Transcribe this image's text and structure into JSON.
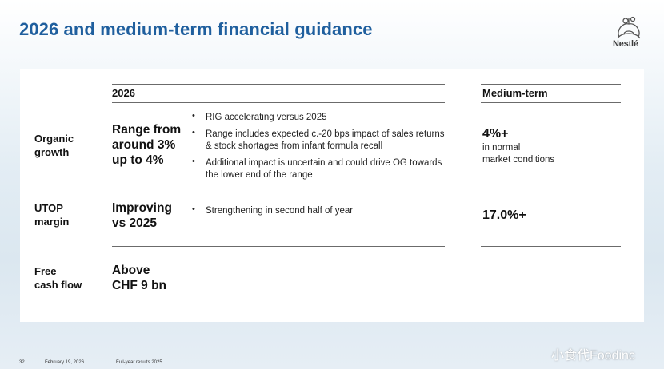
{
  "title": "2026 and medium-term financial guidance",
  "logo": {
    "text": "Nestlé",
    "icon": "nest-icon"
  },
  "table": {
    "header_2026": "2026",
    "header_medium": "Medium-term",
    "rows": [
      {
        "label_line1": "Organic",
        "label_line2": "growth",
        "value_lines": [
          "Range from",
          "around 3%",
          "up to 4%"
        ],
        "bullets": [
          "RIG accelerating versus 2025",
          "Range includes expected c.-20 bps impact of sales returns & stock shortages from infant formula recall",
          "Additional impact is uncertain and could drive OG towards the lower end of the range"
        ],
        "medium_value": "4%+",
        "medium_note_line1": "in normal",
        "medium_note_line2": "market conditions"
      },
      {
        "label_line1": "UTOP",
        "label_line2": "margin",
        "value_lines": [
          "Improving",
          "vs 2025"
        ],
        "bullets": [
          "Strengthening in second half of year"
        ],
        "medium_value": "17.0%+"
      },
      {
        "label_line1": "Free",
        "label_line2": "cash flow",
        "value_lines": [
          "Above",
          "CHF 9 bn"
        ]
      }
    ]
  },
  "footer": {
    "page_number": "32",
    "date": "February 19, 2026",
    "doc": "Full-year results 2025"
  },
  "watermark": "小食代Foodinc",
  "colors": {
    "title": "#1f5f9e"
  }
}
